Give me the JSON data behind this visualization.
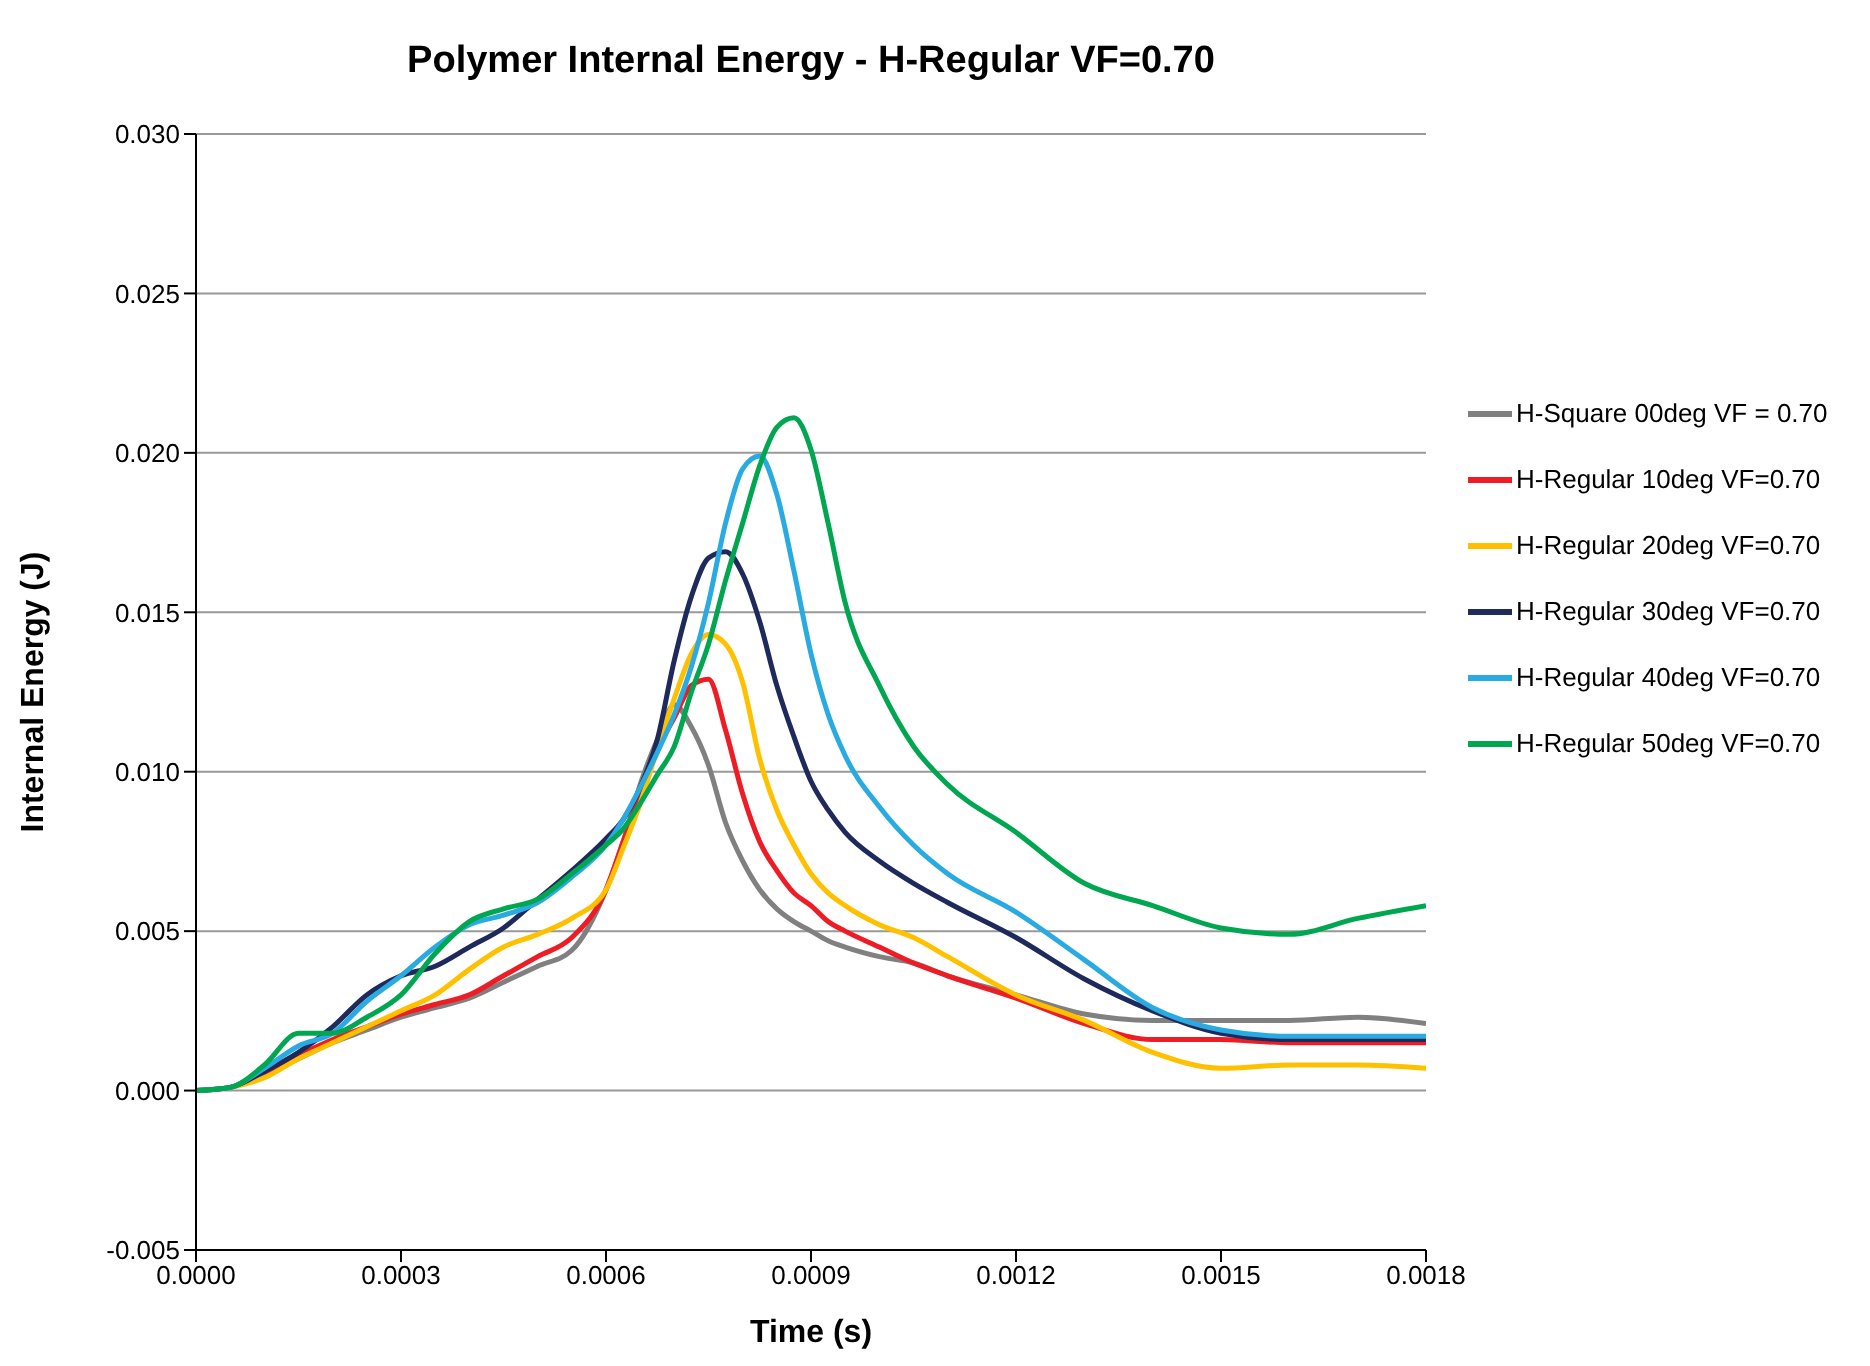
{
  "chart_data": {
    "type": "line",
    "title": "Polymer Internal Energy - H-Regular VF=0.70",
    "xlabel": "Time (s)",
    "ylabel": "Internal Energy (J)",
    "x": [
      0,
      5e-05,
      0.0001,
      0.00015,
      0.0002,
      0.00025,
      0.0003,
      0.00035,
      0.0004,
      0.00045,
      0.0005,
      0.00055,
      0.0006,
      0.000625,
      0.00065,
      0.000675,
      0.0007,
      0.000725,
      0.00075,
      0.000775,
      0.0008,
      0.000825,
      0.00085,
      0.000875,
      0.0009,
      0.000925,
      0.00095,
      0.001,
      0.00105,
      0.0011,
      0.0012,
      0.0013,
      0.0014,
      0.0015,
      0.0016,
      0.0017,
      0.0018
    ],
    "series": [
      {
        "name": "H-Square 00deg VF = 0.70",
        "color": "#808080",
        "values": [
          0,
          0.0001,
          0.0005,
          0.001,
          0.0015,
          0.0019,
          0.0023,
          0.0026,
          0.0029,
          0.0034,
          0.0039,
          0.0044,
          0.0063,
          0.0078,
          0.0096,
          0.011,
          0.0121,
          0.0114,
          0.0102,
          0.0084,
          0.0072,
          0.0063,
          0.0057,
          0.0053,
          0.005,
          0.0047,
          0.0045,
          0.0042,
          0.004,
          0.0036,
          0.003,
          0.0024,
          0.0022,
          0.0022,
          0.0022,
          0.0023,
          0.0021
        ]
      },
      {
        "name": "H-Regular 10deg VF=0.70",
        "color": "#ee1c25",
        "values": [
          null,
          null,
          0.0005,
          0.0011,
          0.0016,
          0.002,
          0.0024,
          0.0027,
          0.003,
          0.0036,
          0.0042,
          0.0048,
          0.0063,
          0.0078,
          0.0093,
          0.0107,
          0.0117,
          0.0127,
          0.0129,
          0.0113,
          0.0093,
          0.0078,
          0.0069,
          0.0062,
          0.0058,
          0.0053,
          0.005,
          0.0045,
          0.004,
          0.0036,
          0.0029,
          0.0021,
          0.0016,
          0.0016,
          0.0015,
          0.0015,
          0.0015
        ]
      },
      {
        "name": "H-Regular 20deg VF=0.70",
        "color": "#ffc000",
        "values": [
          0,
          0.0001,
          0.0004,
          0.001,
          0.0015,
          0.002,
          0.0025,
          0.003,
          0.0038,
          0.0045,
          0.0049,
          0.0054,
          0.0063,
          0.0076,
          0.009,
          0.0107,
          0.0123,
          0.0137,
          0.0143,
          0.014,
          0.0128,
          0.0104,
          0.0088,
          0.0077,
          0.0068,
          0.0062,
          0.0058,
          0.0052,
          0.0048,
          0.0042,
          0.003,
          0.0022,
          0.0012,
          0.0007,
          0.0008,
          0.0008,
          0.0007
        ]
      },
      {
        "name": "H-Regular 30deg VF=0.70",
        "color": "#1f2a5c",
        "values": [
          0,
          0.0001,
          0.0006,
          0.0012,
          0.002,
          0.003,
          0.0036,
          0.0039,
          0.0045,
          0.0051,
          0.006,
          0.0069,
          0.0079,
          0.0085,
          0.0095,
          0.011,
          0.0135,
          0.0155,
          0.0167,
          0.0169,
          0.0162,
          0.0147,
          0.0127,
          0.0111,
          0.0097,
          0.0088,
          0.0081,
          0.0072,
          0.0065,
          0.0059,
          0.0048,
          0.0035,
          0.0025,
          0.0018,
          0.0016,
          0.0016,
          0.0016
        ]
      },
      {
        "name": "H-Regular 40deg VF=0.70",
        "color": "#29abe2",
        "values": [
          0,
          0.0001,
          0.0007,
          0.0014,
          0.0018,
          0.0028,
          0.0036,
          0.0045,
          0.0052,
          0.0055,
          0.0059,
          0.0067,
          0.0077,
          0.0085,
          0.0095,
          0.0106,
          0.0118,
          0.0133,
          0.0153,
          0.0178,
          0.0195,
          0.0199,
          0.0187,
          0.0163,
          0.0137,
          0.0118,
          0.0105,
          0.0089,
          0.0077,
          0.0068,
          0.0056,
          0.0041,
          0.0026,
          0.0019,
          0.0017,
          0.0017,
          0.0017
        ]
      },
      {
        "name": "H-Regular 50deg VF=0.70",
        "color": "#00a650",
        "values": [
          0,
          0.0001,
          0.0008,
          0.0018,
          0.0018,
          0.0023,
          0.003,
          0.0043,
          0.0053,
          0.0057,
          0.006,
          0.0068,
          0.0077,
          0.0082,
          0.009,
          0.0099,
          0.0108,
          0.0125,
          0.014,
          0.016,
          0.0178,
          0.0196,
          0.0208,
          0.0211,
          0.0201,
          0.0178,
          0.0153,
          0.0127,
          0.0108,
          0.0096,
          0.0081,
          0.0065,
          0.0058,
          0.0051,
          0.0049,
          0.0054,
          0.0058
        ]
      }
    ],
    "xlim": [
      0,
      0.0018
    ],
    "xticks": [
      {
        "value": 0,
        "label": "0.0000"
      },
      {
        "value": 0.0003,
        "label": "0.0003"
      },
      {
        "value": 0.0006,
        "label": "0.0006"
      },
      {
        "value": 0.0009,
        "label": "0.0009"
      },
      {
        "value": 0.0012,
        "label": "0.0012"
      },
      {
        "value": 0.0015,
        "label": "0.0015"
      },
      {
        "value": 0.0018,
        "label": "0.0018"
      }
    ],
    "ylim": [
      -0.005,
      0.03
    ],
    "yticks": [
      {
        "value": -0.005,
        "label": "-0.005"
      },
      {
        "value": 0,
        "label": "0.000"
      },
      {
        "value": 0.005,
        "label": "0.005"
      },
      {
        "value": 0.01,
        "label": "0.010"
      },
      {
        "value": 0.015,
        "label": "0.015"
      },
      {
        "value": 0.02,
        "label": "0.020"
      },
      {
        "value": 0.025,
        "label": "0.025"
      },
      {
        "value": 0.03,
        "label": "0.030"
      }
    ],
    "grid": "y",
    "legend": "right",
    "marker": "none",
    "line_style": "solid"
  }
}
